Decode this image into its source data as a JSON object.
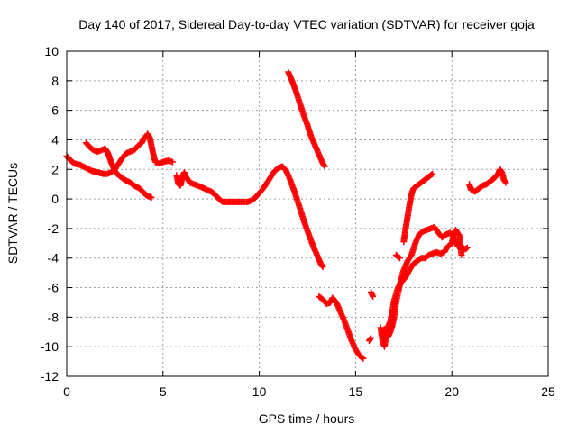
{
  "chart_data": {
    "type": "scatter",
    "title": "Day 140 of 2017, Sidereal Day-to-day VTEC variation (SDTVAR) for receiver goja",
    "xlabel": "GPS time / hours",
    "ylabel": "SDTVAR / TECUs",
    "xlim": [
      0,
      25
    ],
    "ylim": [
      -12,
      10
    ],
    "xticks": [
      0,
      5,
      10,
      15,
      20,
      25
    ],
    "yticks": [
      -12,
      -10,
      -8,
      -6,
      -4,
      -2,
      0,
      2,
      4,
      6,
      8,
      10
    ],
    "grid": true,
    "marker": "plus",
    "color": "#ff0000",
    "segments": [
      [
        [
          0.0,
          2.9
        ],
        [
          0.2,
          2.6
        ],
        [
          0.4,
          2.4
        ],
        [
          0.7,
          2.3
        ],
        [
          1.0,
          2.1
        ],
        [
          1.3,
          1.9
        ],
        [
          1.6,
          1.8
        ],
        [
          1.9,
          1.7
        ],
        [
          2.1,
          1.7
        ],
        [
          2.3,
          1.8
        ],
        [
          2.5,
          2.0
        ],
        [
          2.7,
          2.4
        ],
        [
          2.9,
          2.8
        ],
        [
          3.1,
          3.1
        ],
        [
          3.3,
          3.2
        ],
        [
          3.5,
          3.3
        ],
        [
          3.7,
          3.6
        ],
        [
          3.9,
          3.8
        ],
        [
          4.0,
          4.1
        ],
        [
          4.1,
          4.2
        ],
        [
          4.2,
          4.4
        ],
        [
          4.3,
          4.2
        ],
        [
          4.4,
          3.6
        ],
        [
          4.5,
          3.0
        ],
        [
          4.6,
          2.5
        ],
        [
          4.8,
          2.4
        ],
        [
          5.0,
          2.5
        ],
        [
          5.3,
          2.6
        ],
        [
          5.5,
          2.5
        ]
      ],
      [
        [
          1.0,
          3.8
        ],
        [
          1.2,
          3.5
        ],
        [
          1.4,
          3.3
        ],
        [
          1.6,
          3.2
        ],
        [
          1.8,
          3.3
        ],
        [
          2.0,
          3.4
        ],
        [
          2.1,
          3.2
        ],
        [
          2.2,
          2.9
        ],
        [
          2.3,
          2.5
        ],
        [
          2.4,
          2.2
        ],
        [
          2.5,
          1.9
        ],
        [
          2.6,
          1.7
        ],
        [
          2.8,
          1.5
        ],
        [
          3.0,
          1.3
        ],
        [
          3.3,
          1.1
        ],
        [
          3.5,
          0.9
        ],
        [
          3.8,
          0.7
        ],
        [
          4.0,
          0.4
        ],
        [
          4.2,
          0.2
        ],
        [
          4.4,
          0.1
        ]
      ],
      [
        [
          5.7,
          1.6
        ],
        [
          5.8,
          1.0
        ],
        [
          5.9,
          0.9
        ],
        [
          6.0,
          1.4
        ],
        [
          6.1,
          1.8
        ],
        [
          6.2,
          1.5
        ],
        [
          6.4,
          1.1
        ],
        [
          6.6,
          1.0
        ],
        [
          6.8,
          0.9
        ],
        [
          7.0,
          0.8
        ],
        [
          7.3,
          0.6
        ],
        [
          7.5,
          0.5
        ],
        [
          7.7,
          0.3
        ],
        [
          7.9,
          0.0
        ],
        [
          8.1,
          -0.2
        ],
        [
          8.4,
          -0.2
        ],
        [
          8.7,
          -0.2
        ],
        [
          9.0,
          -0.2
        ],
        [
          9.2,
          -0.2
        ],
        [
          9.4,
          -0.2
        ],
        [
          9.6,
          -0.1
        ],
        [
          9.8,
          0.1
        ],
        [
          10.0,
          0.4
        ],
        [
          10.2,
          0.7
        ],
        [
          10.4,
          1.1
        ],
        [
          10.6,
          1.5
        ],
        [
          10.8,
          1.9
        ],
        [
          11.0,
          2.1
        ],
        [
          11.2,
          2.2
        ],
        [
          11.4,
          1.9
        ],
        [
          11.6,
          1.3
        ],
        [
          11.8,
          0.6
        ],
        [
          12.0,
          -0.2
        ],
        [
          12.2,
          -1.0
        ],
        [
          12.4,
          -1.8
        ],
        [
          12.6,
          -2.5
        ],
        [
          12.8,
          -3.2
        ],
        [
          13.0,
          -3.8
        ],
        [
          13.2,
          -4.4
        ],
        [
          13.3,
          -4.6
        ]
      ],
      [
        [
          11.5,
          8.6
        ],
        [
          11.7,
          8.0
        ],
        [
          11.9,
          7.3
        ],
        [
          12.1,
          6.5
        ],
        [
          12.3,
          5.7
        ],
        [
          12.5,
          5.0
        ],
        [
          12.7,
          4.2
        ],
        [
          12.9,
          3.6
        ],
        [
          13.1,
          3.0
        ],
        [
          13.3,
          2.4
        ],
        [
          13.4,
          2.2
        ]
      ],
      [
        [
          13.1,
          -6.6
        ],
        [
          13.3,
          -6.8
        ],
        [
          13.5,
          -7.1
        ],
        [
          13.7,
          -7.0
        ],
        [
          13.8,
          -6.7
        ],
        [
          14.0,
          -7.0
        ],
        [
          14.2,
          -7.6
        ],
        [
          14.4,
          -8.2
        ],
        [
          14.6,
          -8.9
        ],
        [
          14.8,
          -9.6
        ],
        [
          15.0,
          -10.2
        ],
        [
          15.2,
          -10.6
        ],
        [
          15.4,
          -10.8
        ]
      ],
      [
        [
          15.7,
          -9.6
        ],
        [
          15.8,
          -9.4
        ]
      ],
      [
        [
          15.8,
          -6.3
        ],
        [
          15.9,
          -6.6
        ]
      ],
      [
        [
          16.3,
          -8.7
        ],
        [
          16.4,
          -9.6
        ],
        [
          16.5,
          -10.0
        ],
        [
          16.6,
          -9.2
        ],
        [
          16.7,
          -8.6
        ],
        [
          16.8,
          -8.3
        ],
        [
          16.9,
          -7.7
        ],
        [
          17.0,
          -6.9
        ],
        [
          17.2,
          -6.0
        ],
        [
          17.4,
          -5.6
        ],
        [
          17.6,
          -5.3
        ],
        [
          17.8,
          -4.8
        ],
        [
          18.0,
          -4.4
        ],
        [
          18.2,
          -4.2
        ],
        [
          18.4,
          -4.0
        ],
        [
          18.6,
          -4.0
        ],
        [
          18.8,
          -3.8
        ],
        [
          19.0,
          -3.7
        ],
        [
          19.2,
          -3.6
        ],
        [
          19.4,
          -3.7
        ],
        [
          19.6,
          -3.6
        ],
        [
          19.8,
          -3.2
        ],
        [
          20.0,
          -3.0
        ],
        [
          20.1,
          -2.3
        ],
        [
          20.2,
          -2.1
        ],
        [
          20.4,
          -2.5
        ],
        [
          20.5,
          -3.8
        ]
      ],
      [
        [
          16.4,
          -9.4
        ],
        [
          16.5,
          -8.8
        ],
        [
          16.6,
          -9.0
        ],
        [
          16.7,
          -9.3
        ],
        [
          16.8,
          -9.0
        ],
        [
          16.9,
          -8.6
        ],
        [
          17.0,
          -8.0
        ],
        [
          17.1,
          -7.0
        ],
        [
          17.3,
          -5.8
        ],
        [
          17.5,
          -4.8
        ],
        [
          17.7,
          -4.2
        ],
        [
          17.9,
          -3.8
        ],
        [
          18.1,
          -3.0
        ],
        [
          18.3,
          -2.4
        ],
        [
          18.5,
          -2.2
        ],
        [
          18.7,
          -2.1
        ],
        [
          18.9,
          -2.0
        ],
        [
          19.1,
          -1.9
        ],
        [
          19.3,
          -2.3
        ],
        [
          19.5,
          -2.6
        ],
        [
          19.7,
          -2.4
        ],
        [
          19.9,
          -2.3
        ],
        [
          20.1,
          -2.6
        ],
        [
          20.3,
          -3.2
        ],
        [
          20.5,
          -3.3
        ],
        [
          20.7,
          -3.4
        ],
        [
          20.8,
          -3.3
        ]
      ],
      [
        [
          17.1,
          -3.8
        ],
        [
          17.3,
          -4.0
        ]
      ],
      [
        [
          17.5,
          -2.9
        ],
        [
          17.6,
          -2.0
        ],
        [
          17.7,
          -1.2
        ],
        [
          17.8,
          -0.4
        ],
        [
          17.9,
          0.3
        ],
        [
          18.0,
          0.7
        ],
        [
          18.2,
          0.9
        ],
        [
          18.4,
          1.1
        ],
        [
          18.6,
          1.3
        ],
        [
          18.8,
          1.5
        ],
        [
          19.0,
          1.7
        ]
      ],
      [
        [
          20.9,
          1.0
        ],
        [
          21.0,
          0.6
        ],
        [
          21.2,
          0.5
        ],
        [
          21.4,
          0.7
        ],
        [
          21.6,
          0.9
        ],
        [
          21.8,
          1.0
        ],
        [
          22.0,
          1.2
        ],
        [
          22.2,
          1.4
        ],
        [
          22.4,
          1.7
        ],
        [
          22.5,
          2.0
        ],
        [
          22.6,
          1.8
        ],
        [
          22.7,
          1.3
        ],
        [
          22.8,
          1.1
        ]
      ]
    ]
  }
}
